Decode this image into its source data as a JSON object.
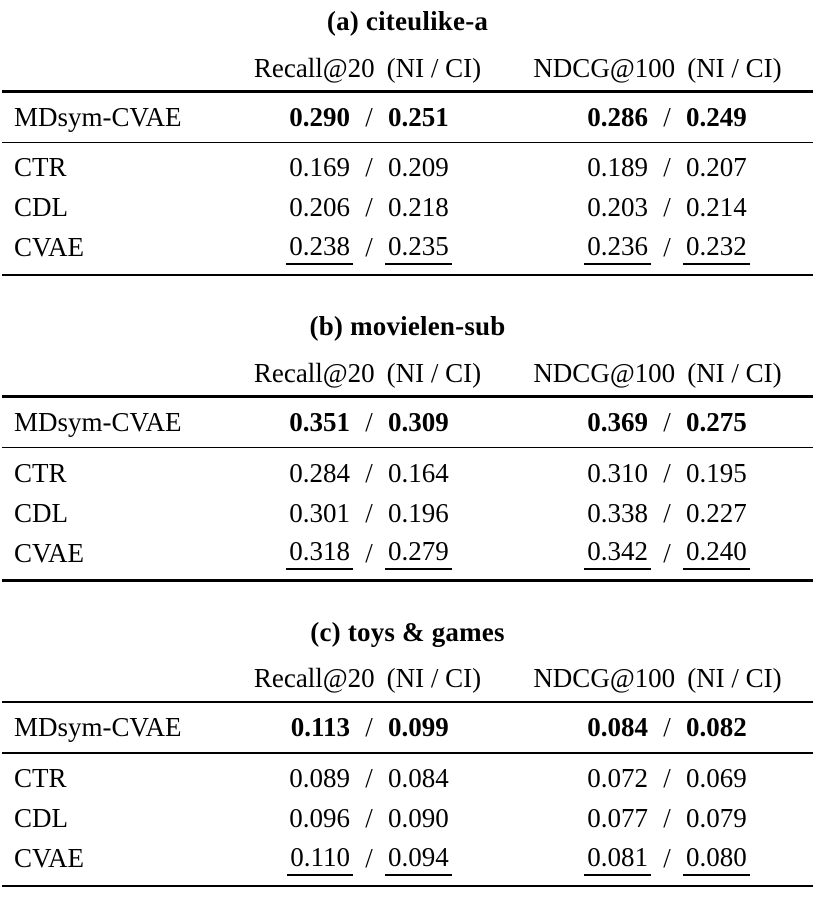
{
  "figure": {
    "background": "#ffffff",
    "text_color": "#000000",
    "value_separator": "/"
  },
  "tables": [
    {
      "caption": "(a) citeulike-a",
      "headers": [
        {
          "metric": "Recall@20",
          "note": "(NI / CI)"
        },
        {
          "metric": "NDCG@100",
          "note": "(NI / CI)"
        }
      ],
      "highlight_row": {
        "label": "MDsym-CVAE",
        "recall_ni": "0.290",
        "recall_ci": "0.251",
        "ndcg_ni": "0.286",
        "ndcg_ci": "0.249"
      },
      "baseline_rows": [
        {
          "label": "CTR",
          "recall_ni": "0.169",
          "recall_ci": "0.209",
          "ndcg_ni": "0.189",
          "ndcg_ci": "0.207",
          "underline": false
        },
        {
          "label": "CDL",
          "recall_ni": "0.206",
          "recall_ci": "0.218",
          "ndcg_ni": "0.203",
          "ndcg_ci": "0.214",
          "underline": false
        },
        {
          "label": "CVAE",
          "recall_ni": "0.238",
          "recall_ci": "0.235",
          "ndcg_ni": "0.236",
          "ndcg_ci": "0.232",
          "underline": true
        }
      ]
    },
    {
      "caption": "(b) movielen-sub",
      "headers": [
        {
          "metric": "Recall@20",
          "note": "(NI / CI)"
        },
        {
          "metric": "NDCG@100",
          "note": "(NI / CI)"
        }
      ],
      "highlight_row": {
        "label": "MDsym-CVAE",
        "recall_ni": "0.351",
        "recall_ci": "0.309",
        "ndcg_ni": "0.369",
        "ndcg_ci": "0.275"
      },
      "baseline_rows": [
        {
          "label": "CTR",
          "recall_ni": "0.284",
          "recall_ci": "0.164",
          "ndcg_ni": "0.310",
          "ndcg_ci": "0.195",
          "underline": false
        },
        {
          "label": "CDL",
          "recall_ni": "0.301",
          "recall_ci": "0.196",
          "ndcg_ni": "0.338",
          "ndcg_ci": "0.227",
          "underline": false
        },
        {
          "label": "CVAE",
          "recall_ni": "0.318",
          "recall_ci": "0.279",
          "ndcg_ni": "0.342",
          "ndcg_ci": "0.240",
          "underline": true
        }
      ]
    },
    {
      "caption": "(c) toys & games",
      "headers": [
        {
          "metric": "Recall@20",
          "note": "(NI / CI)"
        },
        {
          "metric": "NDCG@100",
          "note": "(NI / CI)"
        }
      ],
      "highlight_row": {
        "label": "MDsym-CVAE",
        "recall_ni": "0.113",
        "recall_ci": "0.099",
        "ndcg_ni": "0.084",
        "ndcg_ci": "0.082"
      },
      "baseline_rows": [
        {
          "label": "CTR",
          "recall_ni": "0.089",
          "recall_ci": "0.084",
          "ndcg_ni": "0.072",
          "ndcg_ci": "0.069",
          "underline": false
        },
        {
          "label": "CDL",
          "recall_ni": "0.096",
          "recall_ci": "0.090",
          "ndcg_ni": "0.077",
          "ndcg_ci": "0.079",
          "underline": false
        },
        {
          "label": "CVAE",
          "recall_ni": "0.110",
          "recall_ci": "0.094",
          "ndcg_ni": "0.081",
          "ndcg_ci": "0.080",
          "underline": true
        }
      ]
    }
  ]
}
